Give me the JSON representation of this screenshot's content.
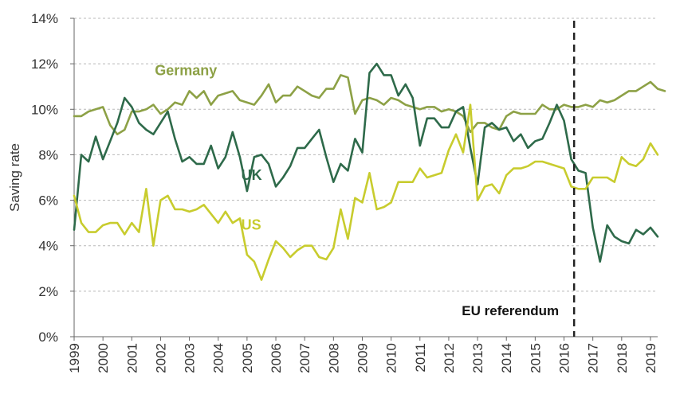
{
  "chart_data": {
    "type": "line",
    "title": "",
    "xlabel": "",
    "ylabel": "Saving rate",
    "ylim": [
      0,
      14
    ],
    "xlim": [
      1999.0,
      2019.25
    ],
    "y_ticks": [
      0,
      2,
      4,
      6,
      8,
      10,
      12,
      14
    ],
    "y_tick_labels": [
      "0%",
      "2%",
      "4%",
      "6%",
      "8%",
      "10%",
      "12%",
      "14%"
    ],
    "x_ticks": [
      1999,
      2000,
      2001,
      2002,
      2003,
      2004,
      2005,
      2006,
      2007,
      2008,
      2009,
      2010,
      2011,
      2012,
      2013,
      2014,
      2015,
      2016,
      2017,
      2018,
      2019
    ],
    "x_tick_labels": [
      "1999",
      "2000",
      "2001",
      "2002",
      "2003",
      "2004",
      "2005",
      "2006",
      "2007",
      "2008",
      "2009",
      "2010",
      "2011",
      "2012",
      "2013",
      "2014",
      "2015",
      "2016",
      "2017",
      "2018",
      "2019"
    ],
    "grid": "horizontal dashed",
    "x_start": 1999.0,
    "x_step": 0.25,
    "series": [
      {
        "name": "Germany",
        "color": "#8da146",
        "values": [
          9.7,
          9.7,
          9.9,
          10.0,
          10.1,
          9.3,
          8.9,
          9.1,
          9.9,
          9.9,
          10.0,
          10.2,
          9.8,
          10.0,
          10.3,
          10.2,
          10.8,
          10.5,
          10.8,
          10.2,
          10.6,
          10.7,
          10.8,
          10.4,
          10.3,
          10.2,
          10.6,
          11.1,
          10.3,
          10.6,
          10.6,
          11.0,
          10.8,
          10.6,
          10.5,
          10.9,
          10.9,
          11.5,
          11.4,
          9.8,
          10.4,
          10.5,
          10.4,
          10.2,
          10.5,
          10.4,
          10.2,
          10.1,
          10.0,
          10.1,
          10.1,
          9.9,
          10.0,
          9.9,
          9.7,
          9.0,
          9.4,
          9.4,
          9.2,
          9.1,
          9.7,
          9.9,
          9.8,
          9.8,
          9.8,
          10.2,
          10.0,
          10.0,
          10.2,
          10.1,
          10.1,
          10.2,
          10.1,
          10.4,
          10.3,
          10.4,
          10.6,
          10.8,
          10.8,
          11.0,
          11.2,
          10.9,
          10.8
        ]
      },
      {
        "name": "UK",
        "color": "#2e6a4a",
        "values": [
          4.7,
          8.0,
          7.7,
          8.8,
          7.8,
          8.6,
          9.4,
          10.5,
          10.1,
          9.4,
          9.1,
          8.9,
          9.4,
          9.9,
          8.7,
          7.7,
          7.9,
          7.6,
          7.6,
          8.4,
          7.4,
          7.9,
          9.0,
          7.9,
          6.4,
          7.9,
          8.0,
          7.6,
          6.6,
          7.0,
          7.5,
          8.3,
          8.3,
          8.7,
          9.1,
          7.9,
          6.8,
          7.6,
          7.3,
          8.7,
          8.1,
          11.6,
          12.0,
          11.5,
          11.5,
          10.6,
          11.1,
          10.5,
          8.4,
          9.6,
          9.6,
          9.2,
          9.2,
          9.9,
          10.1,
          8.3,
          6.7,
          9.2,
          9.4,
          9.1,
          9.2,
          8.6,
          8.9,
          8.3,
          8.6,
          8.7,
          9.4,
          10.2,
          9.5,
          7.8,
          7.3,
          7.2,
          4.8,
          3.3,
          4.9,
          4.4,
          4.2,
          4.1,
          4.7,
          4.5,
          4.8,
          4.4
        ]
      },
      {
        "name": "US",
        "color": "#c8cc2e",
        "values": [
          6.2,
          5.0,
          4.6,
          4.6,
          4.9,
          5.0,
          5.0,
          4.5,
          5.0,
          4.6,
          6.5,
          4.0,
          6.0,
          6.2,
          5.6,
          5.6,
          5.5,
          5.6,
          5.8,
          5.4,
          5.0,
          5.5,
          5.0,
          5.2,
          3.6,
          3.3,
          2.5,
          3.4,
          4.2,
          3.9,
          3.5,
          3.8,
          4.0,
          4.0,
          3.5,
          3.4,
          3.9,
          5.6,
          4.3,
          6.1,
          5.9,
          7.2,
          5.6,
          5.7,
          5.9,
          6.8,
          6.8,
          6.8,
          7.4,
          7.0,
          7.1,
          7.2,
          8.2,
          8.9,
          8.1,
          10.2,
          6.0,
          6.6,
          6.7,
          6.3,
          7.1,
          7.4,
          7.4,
          7.5,
          7.7,
          7.7,
          7.6,
          7.5,
          7.4,
          6.6,
          6.5,
          6.5,
          7.0,
          7.0,
          7.0,
          6.8,
          7.9,
          7.6,
          7.5,
          7.8,
          8.5,
          8.0
        ]
      }
    ],
    "series_labels": [
      {
        "text": "Germany",
        "at_x": 2001.8,
        "at_y": 11.5
      },
      {
        "text": "UK",
        "at_x": 2004.8,
        "at_y": 6.9
      },
      {
        "text": "US",
        "at_x": 2004.8,
        "at_y": 4.7
      }
    ],
    "annotations": [
      {
        "text": "EU referendum",
        "type": "vertical-dashed-line",
        "x": 2016.35
      }
    ]
  }
}
